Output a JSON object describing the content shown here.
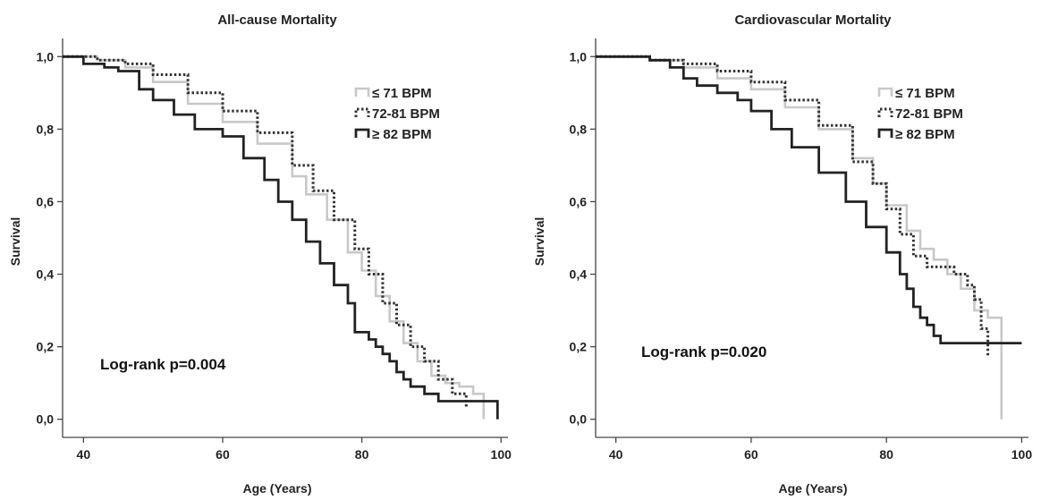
{
  "colors": {
    "low": "#c8c8c8",
    "mid": "#333333",
    "high": "#222222",
    "axis": "#444444"
  },
  "chart_data": [
    {
      "type": "line",
      "title": "All-cause Mortality",
      "xlabel": "Age (Years)",
      "ylabel": "Survival",
      "xlim": [
        37,
        101
      ],
      "ylim": [
        -0.05,
        1.05
      ],
      "x_ticks": [
        40,
        60,
        80,
        100
      ],
      "y_ticks": [
        "0,0",
        "0,2",
        "0,4",
        "0,6",
        "0,8",
        "1,0"
      ],
      "y_tick_values": [
        0,
        0.2,
        0.4,
        0.6,
        0.8,
        1.0
      ],
      "legend_position": "top-right",
      "annotation": "Log-rank p=0.004",
      "series": [
        {
          "name": "≤ 71 BPM",
          "style": "light-solid",
          "x": [
            37,
            42,
            46,
            50,
            55,
            60,
            65,
            70,
            72,
            75,
            78,
            80,
            82,
            84,
            86,
            88,
            90,
            92,
            94,
            96,
            97.5,
            97.5
          ],
          "y": [
            1.0,
            0.99,
            0.97,
            0.93,
            0.87,
            0.82,
            0.76,
            0.67,
            0.62,
            0.55,
            0.46,
            0.41,
            0.34,
            0.27,
            0.21,
            0.16,
            0.12,
            0.1,
            0.09,
            0.07,
            0.07,
            0.0
          ]
        },
        {
          "name": "72-81 BPM",
          "style": "dotted",
          "x": [
            37,
            42,
            46,
            50,
            55,
            60,
            65,
            70,
            73,
            76,
            79,
            81,
            83,
            85,
            87,
            89,
            91,
            93,
            95
          ],
          "y": [
            1.0,
            0.99,
            0.98,
            0.95,
            0.9,
            0.85,
            0.79,
            0.7,
            0.63,
            0.55,
            0.47,
            0.4,
            0.32,
            0.26,
            0.2,
            0.16,
            0.11,
            0.07,
            0.03
          ]
        },
        {
          "name": "≥ 82 BPM",
          "style": "dark-solid",
          "x": [
            37,
            40,
            43,
            45,
            48,
            50,
            53,
            56,
            60,
            63,
            66,
            68,
            70,
            72,
            74,
            76,
            78,
            79,
            80,
            81,
            82,
            83,
            84,
            85,
            86,
            87,
            89,
            91,
            99.5,
            99.5
          ],
          "y": [
            1.0,
            0.98,
            0.97,
            0.96,
            0.91,
            0.88,
            0.84,
            0.8,
            0.78,
            0.72,
            0.66,
            0.6,
            0.55,
            0.49,
            0.43,
            0.37,
            0.32,
            0.24,
            0.24,
            0.22,
            0.2,
            0.18,
            0.16,
            0.13,
            0.11,
            0.09,
            0.07,
            0.05,
            0.05,
            0.0
          ]
        }
      ]
    },
    {
      "type": "line",
      "title": "Cardiovascular Mortality",
      "xlabel": "Age (Years)",
      "ylabel": "Survival",
      "xlim": [
        37,
        101
      ],
      "ylim": [
        -0.05,
        1.05
      ],
      "x_ticks": [
        40,
        60,
        80,
        100
      ],
      "y_ticks": [
        "0,0",
        "0,2",
        "0,4",
        "0,6",
        "0,8",
        "1,0"
      ],
      "y_tick_values": [
        0,
        0.2,
        0.4,
        0.6,
        0.8,
        1.0
      ],
      "legend_position": "top-right",
      "annotation": "Log-rank p=0.020",
      "series": [
        {
          "name": "≤ 71 BPM",
          "style": "light-solid",
          "x": [
            37,
            45,
            50,
            55,
            60,
            65,
            70,
            75,
            78,
            80,
            83,
            85,
            87,
            89,
            91,
            93,
            95,
            97,
            97,
            97
          ],
          "y": [
            1.0,
            0.99,
            0.97,
            0.94,
            0.91,
            0.86,
            0.8,
            0.72,
            0.65,
            0.59,
            0.52,
            0.47,
            0.44,
            0.4,
            0.36,
            0.3,
            0.28,
            0.28,
            0.28,
            0.0
          ]
        },
        {
          "name": "72-81 BPM",
          "style": "dotted",
          "x": [
            37,
            45,
            50,
            55,
            60,
            65,
            70,
            75,
            78,
            80,
            82,
            84,
            86,
            88,
            90,
            92,
            93,
            94,
            95
          ],
          "y": [
            1.0,
            0.99,
            0.98,
            0.96,
            0.93,
            0.88,
            0.81,
            0.71,
            0.65,
            0.58,
            0.51,
            0.45,
            0.42,
            0.42,
            0.4,
            0.37,
            0.33,
            0.25,
            0.17
          ]
        },
        {
          "name": "≥ 82 BPM",
          "style": "dark-solid",
          "x": [
            37,
            45,
            48,
            50,
            52,
            55,
            58,
            60,
            63,
            66,
            70,
            74,
            77,
            80,
            82,
            83,
            84,
            85,
            86,
            87,
            88,
            88.5,
            100
          ],
          "y": [
            1.0,
            0.99,
            0.97,
            0.94,
            0.92,
            0.9,
            0.88,
            0.85,
            0.8,
            0.75,
            0.68,
            0.6,
            0.53,
            0.46,
            0.4,
            0.36,
            0.31,
            0.28,
            0.26,
            0.23,
            0.21,
            0.21,
            0.21
          ]
        }
      ]
    }
  ]
}
